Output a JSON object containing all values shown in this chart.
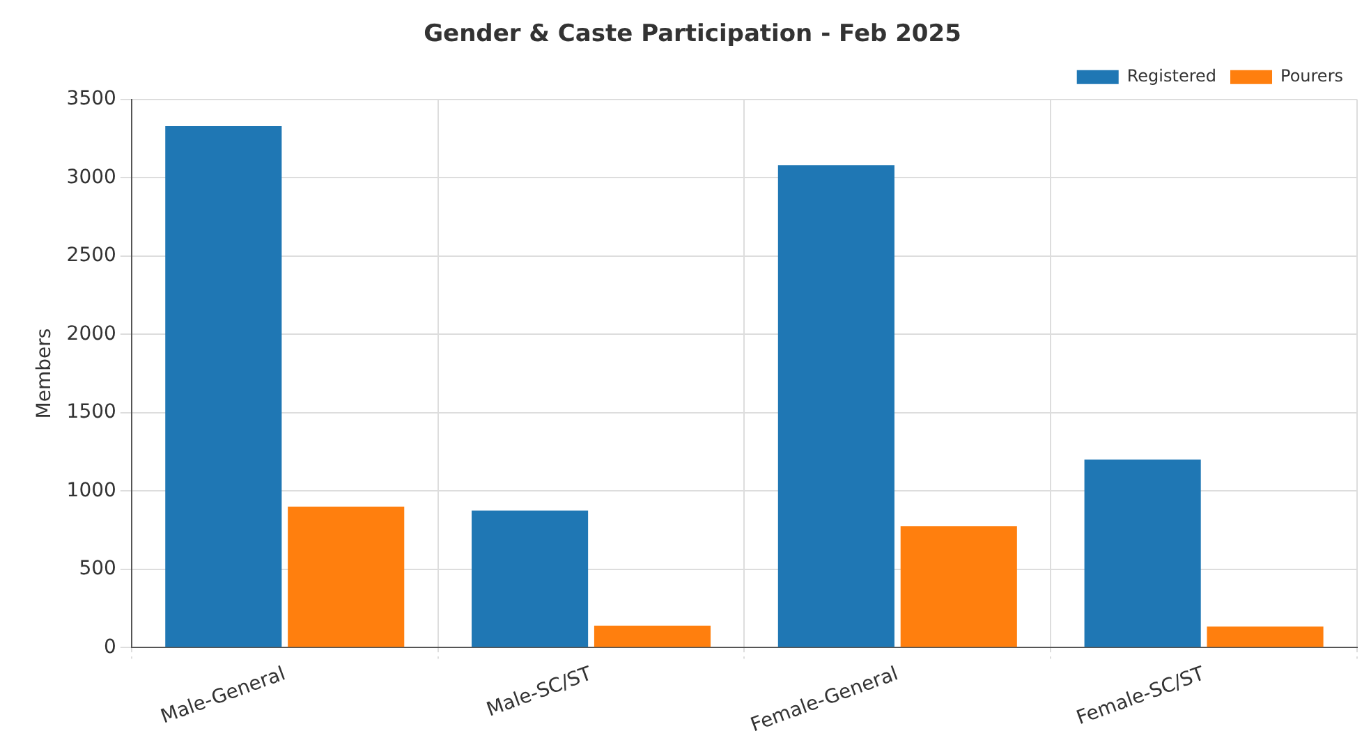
{
  "chart_data": {
    "type": "bar",
    "title": "Gender & Caste Participation - Feb 2025",
    "ylabel": "Members",
    "categories": [
      "Male-General",
      "Male-SC/ST",
      "Female-General",
      "Female-SC/ST"
    ],
    "series": [
      {
        "name": "Registered",
        "color": "#1f77b4",
        "values": [
          3330,
          875,
          3080,
          1200
        ]
      },
      {
        "name": "Pourers",
        "color": "#ff7f0e",
        "values": [
          900,
          140,
          775,
          135
        ]
      }
    ],
    "ylim": [
      0,
      3500
    ],
    "yticks": [
      0,
      500,
      1000,
      1500,
      2000,
      2500,
      3000,
      3500
    ],
    "grid": true,
    "legend": "top right"
  }
}
